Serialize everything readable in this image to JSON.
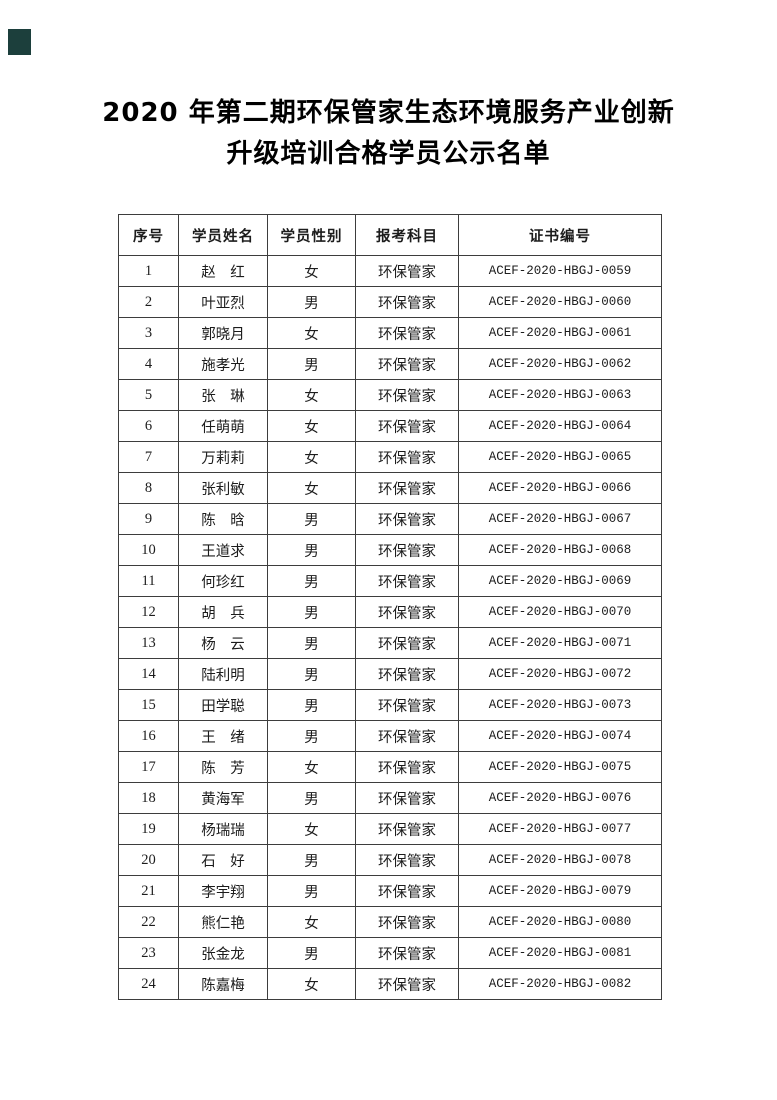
{
  "title": {
    "line1": "2020 年第二期环保管家生态环境服务产业创新",
    "line2": "升级培训合格学员公示名单"
  },
  "corner_mark": {
    "color": "#1c3f3c"
  },
  "colors": {
    "page_background": "#ffffff",
    "text": "#1c1c1c",
    "table_border": "#3d3d3d",
    "title_text": "#000000"
  },
  "table": {
    "headers": [
      "序号",
      "学员姓名",
      "学员性别",
      "报考科目",
      "证书编号"
    ],
    "rows": [
      [
        "1",
        "赵　红",
        "女",
        "环保管家",
        "ACEF-2020-HBGJ-0059"
      ],
      [
        "2",
        "叶亚烈",
        "男",
        "环保管家",
        "ACEF-2020-HBGJ-0060"
      ],
      [
        "3",
        "郭晓月",
        "女",
        "环保管家",
        "ACEF-2020-HBGJ-0061"
      ],
      [
        "4",
        "施孝光",
        "男",
        "环保管家",
        "ACEF-2020-HBGJ-0062"
      ],
      [
        "5",
        "张　琳",
        "女",
        "环保管家",
        "ACEF-2020-HBGJ-0063"
      ],
      [
        "6",
        "任萌萌",
        "女",
        "环保管家",
        "ACEF-2020-HBGJ-0064"
      ],
      [
        "7",
        "万莉莉",
        "女",
        "环保管家",
        "ACEF-2020-HBGJ-0065"
      ],
      [
        "8",
        "张利敏",
        "女",
        "环保管家",
        "ACEF-2020-HBGJ-0066"
      ],
      [
        "9",
        "陈　晗",
        "男",
        "环保管家",
        "ACEF-2020-HBGJ-0067"
      ],
      [
        "10",
        "王道求",
        "男",
        "环保管家",
        "ACEF-2020-HBGJ-0068"
      ],
      [
        "11",
        "何珍红",
        "男",
        "环保管家",
        "ACEF-2020-HBGJ-0069"
      ],
      [
        "12",
        "胡　兵",
        "男",
        "环保管家",
        "ACEF-2020-HBGJ-0070"
      ],
      [
        "13",
        "杨　云",
        "男",
        "环保管家",
        "ACEF-2020-HBGJ-0071"
      ],
      [
        "14",
        "陆利明",
        "男",
        "环保管家",
        "ACEF-2020-HBGJ-0072"
      ],
      [
        "15",
        "田学聪",
        "男",
        "环保管家",
        "ACEF-2020-HBGJ-0073"
      ],
      [
        "16",
        "王　绪",
        "男",
        "环保管家",
        "ACEF-2020-HBGJ-0074"
      ],
      [
        "17",
        "陈　芳",
        "女",
        "环保管家",
        "ACEF-2020-HBGJ-0075"
      ],
      [
        "18",
        "黄海军",
        "男",
        "环保管家",
        "ACEF-2020-HBGJ-0076"
      ],
      [
        "19",
        "杨瑞瑞",
        "女",
        "环保管家",
        "ACEF-2020-HBGJ-0077"
      ],
      [
        "20",
        "石　好",
        "男",
        "环保管家",
        "ACEF-2020-HBGJ-0078"
      ],
      [
        "21",
        "李宇翔",
        "男",
        "环保管家",
        "ACEF-2020-HBGJ-0079"
      ],
      [
        "22",
        "熊仁艳",
        "女",
        "环保管家",
        "ACEF-2020-HBGJ-0080"
      ],
      [
        "23",
        "张金龙",
        "男",
        "环保管家",
        "ACEF-2020-HBGJ-0081"
      ],
      [
        "24",
        "陈嘉梅",
        "女",
        "环保管家",
        "ACEF-2020-HBGJ-0082"
      ]
    ]
  }
}
